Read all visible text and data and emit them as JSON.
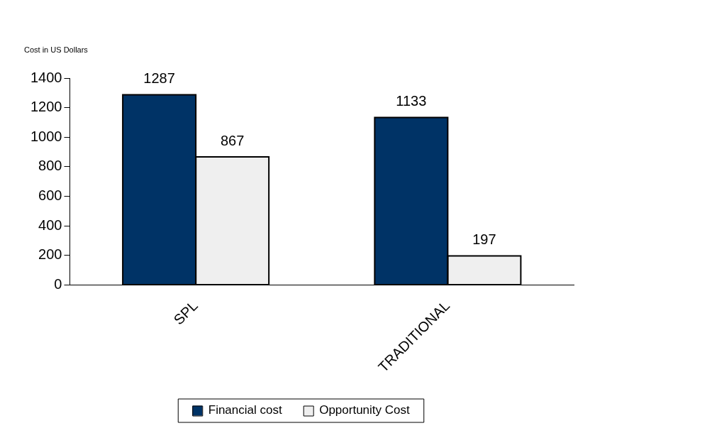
{
  "chart_data": {
    "type": "bar",
    "ylabel": "Cost in US Dollars",
    "categories": [
      "SPL",
      "TRADITIONAL"
    ],
    "series": [
      {
        "name": "Financial cost",
        "color": "#003366",
        "values": [
          1287,
          1133
        ]
      },
      {
        "name": "Opportunity Cost",
        "color": "#efefef",
        "values": [
          867,
          197
        ]
      }
    ],
    "ylim": [
      0,
      1400
    ],
    "yticks": [
      0,
      200,
      400,
      600,
      800,
      1000,
      1200,
      1400
    ],
    "grid": false,
    "legend": "bottom",
    "data_labels": true
  }
}
